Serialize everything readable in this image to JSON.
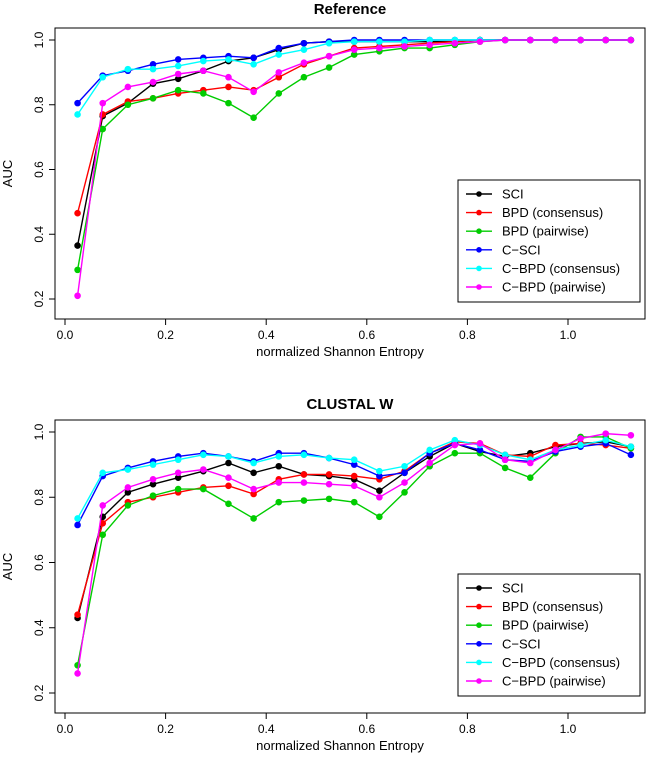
{
  "chart_data": [
    {
      "type": "line",
      "title": "Reference",
      "xlabel": "normalized Shannon Entropy",
      "ylabel": "AUC",
      "xlim": [
        0.0,
        1.125
      ],
      "ylim": [
        0.2,
        1.0
      ],
      "x_ticks": [
        "0.0",
        "0.2",
        "0.4",
        "0.6",
        "0.8",
        "1.0"
      ],
      "y_ticks": [
        "0.2",
        "0.4",
        "0.6",
        "0.8",
        "1.0"
      ],
      "legend_position": "bottom-right",
      "x": [
        0.025,
        0.075,
        0.125,
        0.175,
        0.225,
        0.275,
        0.325,
        0.375,
        0.425,
        0.475,
        0.525,
        0.575,
        0.625,
        0.675,
        0.725,
        0.775,
        0.825,
        0.875,
        0.925,
        0.975,
        1.025,
        1.075,
        1.125
      ],
      "series": [
        {
          "name": "SCI",
          "color": "#000000",
          "values": [
            0.365,
            0.765,
            0.805,
            0.865,
            0.88,
            0.905,
            0.935,
            0.945,
            0.97,
            0.99,
            0.995,
            0.995,
            0.995,
            0.995,
            0.995,
            0.995,
            1.0,
            1.0,
            1.0,
            1.0,
            1.0,
            1.0,
            1.0
          ]
        },
        {
          "name": "BPD (consensus)",
          "color": "#ff0000",
          "values": [
            0.465,
            0.77,
            0.81,
            0.82,
            0.835,
            0.845,
            0.855,
            0.845,
            0.885,
            0.925,
            0.95,
            0.975,
            0.98,
            0.985,
            0.99,
            0.995,
            1.0,
            1.0,
            1.0,
            1.0,
            1.0,
            1.0,
            1.0
          ]
        },
        {
          "name": "BPD (pairwise)",
          "color": "#00cc00",
          "values": [
            0.29,
            0.725,
            0.8,
            0.82,
            0.845,
            0.835,
            0.805,
            0.76,
            0.835,
            0.885,
            0.915,
            0.955,
            0.965,
            0.975,
            0.975,
            0.985,
            0.995,
            1.0,
            1.0,
            1.0,
            1.0,
            1.0,
            1.0
          ]
        },
        {
          "name": "C−SCI",
          "color": "#0000ff",
          "values": [
            0.805,
            0.89,
            0.905,
            0.925,
            0.94,
            0.945,
            0.95,
            0.945,
            0.975,
            0.99,
            0.995,
            1.0,
            1.0,
            1.0,
            1.0,
            1.0,
            1.0,
            1.0,
            1.0,
            1.0,
            1.0,
            1.0,
            1.0
          ]
        },
        {
          "name": "C−BPD (consensus)",
          "color": "#00ffff",
          "values": [
            0.77,
            0.885,
            0.91,
            0.91,
            0.92,
            0.935,
            0.94,
            0.925,
            0.955,
            0.97,
            0.99,
            0.995,
            0.995,
            0.995,
            1.0,
            1.0,
            1.0,
            1.0,
            1.0,
            1.0,
            1.0,
            1.0,
            1.0
          ]
        },
        {
          "name": "C−BPD (pairwise)",
          "color": "#ff00ff",
          "values": [
            0.21,
            0.805,
            0.855,
            0.87,
            0.895,
            0.905,
            0.885,
            0.84,
            0.9,
            0.93,
            0.95,
            0.97,
            0.975,
            0.98,
            0.985,
            0.99,
            0.995,
            1.0,
            1.0,
            1.0,
            1.0,
            1.0,
            1.0
          ]
        }
      ]
    },
    {
      "type": "line",
      "title": "CLUSTAL W",
      "xlabel": "normalized Shannon Entropy",
      "ylabel": "AUC",
      "xlim": [
        0.0,
        1.125
      ],
      "ylim": [
        0.2,
        1.0
      ],
      "x_ticks": [
        "0.0",
        "0.2",
        "0.4",
        "0.6",
        "0.8",
        "1.0"
      ],
      "y_ticks": [
        "0.2",
        "0.4",
        "0.6",
        "0.8",
        "1.0"
      ],
      "legend_position": "bottom-right",
      "x": [
        0.025,
        0.075,
        0.125,
        0.175,
        0.225,
        0.275,
        0.325,
        0.375,
        0.425,
        0.475,
        0.525,
        0.575,
        0.625,
        0.675,
        0.725,
        0.775,
        0.825,
        0.875,
        0.925,
        0.975,
        1.025,
        1.075,
        1.125
      ],
      "series": [
        {
          "name": "SCI",
          "color": "#000000",
          "values": [
            0.43,
            0.74,
            0.815,
            0.84,
            0.86,
            0.88,
            0.905,
            0.875,
            0.895,
            0.87,
            0.865,
            0.855,
            0.82,
            0.875,
            0.925,
            0.965,
            0.94,
            0.925,
            0.935,
            0.955,
            0.965,
            0.97,
            0.955
          ]
        },
        {
          "name": "BPD (consensus)",
          "color": "#ff0000",
          "values": [
            0.44,
            0.72,
            0.785,
            0.8,
            0.815,
            0.83,
            0.835,
            0.81,
            0.855,
            0.87,
            0.87,
            0.865,
            0.855,
            0.88,
            0.935,
            0.97,
            0.965,
            0.93,
            0.925,
            0.96,
            0.965,
            0.96,
            0.95
          ]
        },
        {
          "name": "BPD (pairwise)",
          "color": "#00cc00",
          "values": [
            0.285,
            0.685,
            0.775,
            0.805,
            0.825,
            0.825,
            0.78,
            0.735,
            0.785,
            0.79,
            0.795,
            0.785,
            0.74,
            0.815,
            0.895,
            0.935,
            0.935,
            0.89,
            0.86,
            0.935,
            0.985,
            0.985,
            0.95
          ]
        },
        {
          "name": "C−SCI",
          "color": "#0000ff",
          "values": [
            0.715,
            0.865,
            0.89,
            0.91,
            0.925,
            0.935,
            0.925,
            0.91,
            0.935,
            0.935,
            0.92,
            0.9,
            0.865,
            0.875,
            0.935,
            0.965,
            0.945,
            0.915,
            0.91,
            0.94,
            0.955,
            0.965,
            0.93
          ]
        },
        {
          "name": "C−BPD (consensus)",
          "color": "#00ffff",
          "values": [
            0.735,
            0.875,
            0.885,
            0.9,
            0.915,
            0.93,
            0.925,
            0.905,
            0.925,
            0.93,
            0.92,
            0.915,
            0.88,
            0.895,
            0.945,
            0.975,
            0.96,
            0.93,
            0.915,
            0.945,
            0.96,
            0.975,
            0.955
          ]
        },
        {
          "name": "C−BPD (pairwise)",
          "color": "#ff00ff",
          "values": [
            0.26,
            0.775,
            0.83,
            0.855,
            0.875,
            0.885,
            0.86,
            0.825,
            0.845,
            0.845,
            0.84,
            0.835,
            0.8,
            0.845,
            0.905,
            0.96,
            0.965,
            0.915,
            0.905,
            0.945,
            0.98,
            0.995,
            0.99
          ]
        }
      ]
    }
  ]
}
